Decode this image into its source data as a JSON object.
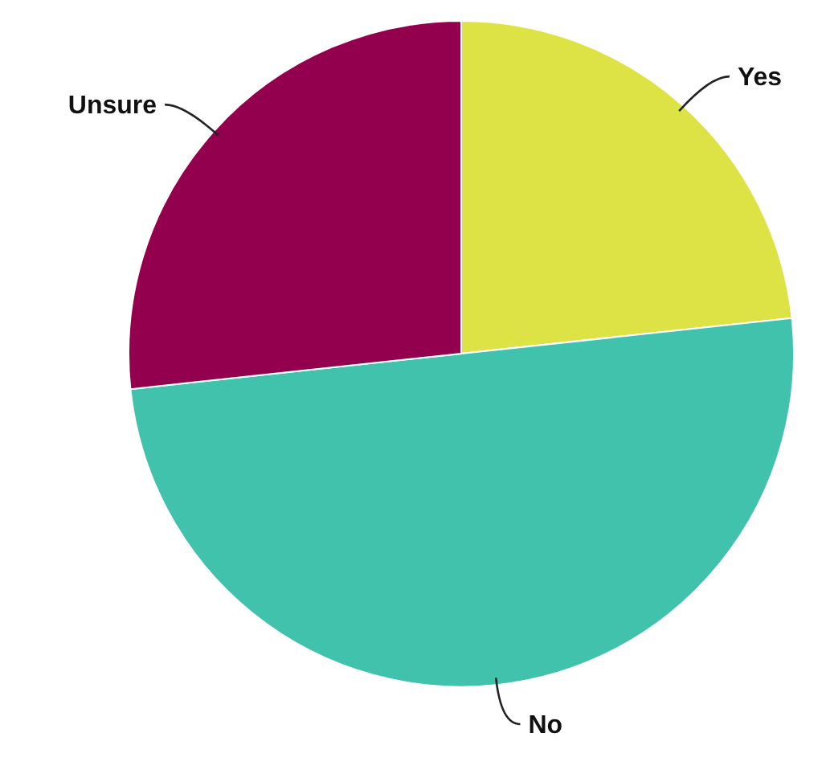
{
  "chart_data": {
    "type": "pie",
    "categories": [
      "Yes",
      "No",
      "Unsure"
    ],
    "values": [
      23.3,
      50,
      26.7
    ],
    "colors": [
      "#dde344",
      "#40c2ad",
      "#93004d"
    ]
  }
}
